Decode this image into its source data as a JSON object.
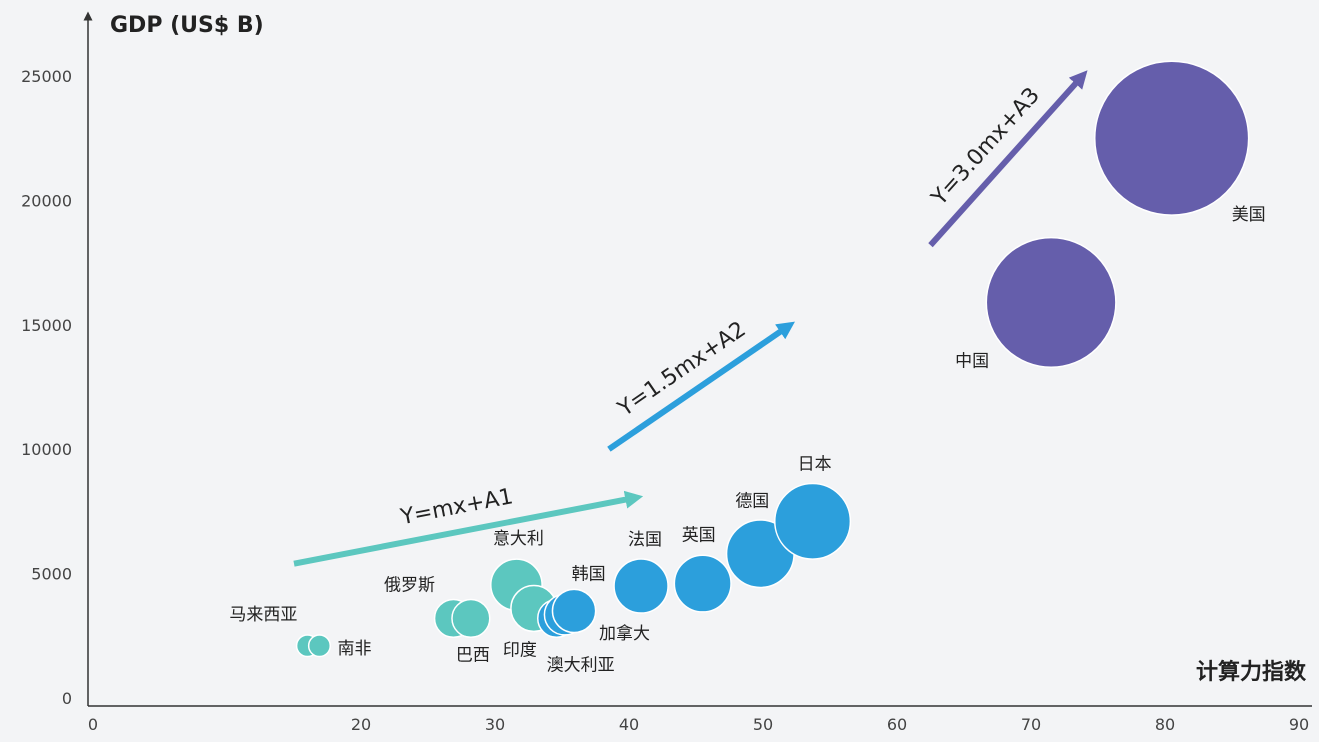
{
  "chart_data": {
    "type": "bubble",
    "ylabel": "GDP (US$ B)",
    "xlabel": "计算力指数",
    "xlim": [
      0,
      90
    ],
    "ylim": [
      0,
      27000
    ],
    "x_ticks": [
      0,
      20,
      30,
      40,
      50,
      60,
      70,
      80,
      90
    ],
    "y_ticks": [
      0,
      5000,
      10000,
      15000,
      20000,
      25000
    ],
    "grid": false,
    "colors": {
      "tier1": "#5cc7bf",
      "tier2": "#2c9fdc",
      "tier3": "#655eab",
      "axis": "#333333",
      "label": "#222222"
    },
    "points": [
      {
        "label": "马来西亚",
        "x": 16.0,
        "y": 2100,
        "r": 8,
        "tier": "tier1"
      },
      {
        "label": "南非",
        "x": 16.9,
        "y": 2100,
        "r": 8,
        "tier": "tier1"
      },
      {
        "label": "俄罗斯",
        "x": 26.9,
        "y": 3200,
        "r": 14,
        "tier": "tier1"
      },
      {
        "label": "巴西",
        "x": 28.2,
        "y": 3200,
        "r": 14,
        "tier": "tier1"
      },
      {
        "label": "意大利",
        "x": 31.6,
        "y": 4550,
        "r": 19,
        "tier": "tier1"
      },
      {
        "label": "印度",
        "x": 32.9,
        "y": 3600,
        "r": 17,
        "tier": "tier1"
      },
      {
        "label": "澳大利亚",
        "x": 34.6,
        "y": 3200,
        "r": 14,
        "tier": "tier2"
      },
      {
        "label": "韩国",
        "x": 35.2,
        "y": 3350,
        "r": 15,
        "tier": "tier2"
      },
      {
        "label": "加拿大",
        "x": 35.9,
        "y": 3500,
        "r": 16,
        "tier": "tier2"
      },
      {
        "label": "法国",
        "x": 40.9,
        "y": 4500,
        "r": 20,
        "tier": "tier2"
      },
      {
        "label": "英国",
        "x": 45.5,
        "y": 4600,
        "r": 21,
        "tier": "tier2"
      },
      {
        "label": "德国",
        "x": 49.8,
        "y": 5800,
        "r": 25,
        "tier": "tier2"
      },
      {
        "label": "日本",
        "x": 53.7,
        "y": 7100,
        "r": 28,
        "tier": "tier2"
      },
      {
        "label": "中国",
        "x": 71.5,
        "y": 15900,
        "r": 48,
        "tier": "tier3"
      },
      {
        "label": "美国",
        "x": 80.5,
        "y": 22500,
        "r": 57,
        "tier": "tier3"
      }
    ],
    "trends": [
      {
        "label": "Y=mx+A1",
        "tier": "tier1",
        "from": [
          15,
          5400
        ],
        "to": [
          40,
          8000
        ]
      },
      {
        "label": "Y=1.5mx+A2",
        "tier": "tier2",
        "from": [
          38.5,
          10000
        ],
        "to": [
          51.5,
          14800
        ]
      },
      {
        "label": "Y=3.0mx+A3",
        "tier": "tier3",
        "from": [
          62.5,
          18200
        ],
        "to": [
          73.5,
          24800
        ]
      }
    ]
  }
}
